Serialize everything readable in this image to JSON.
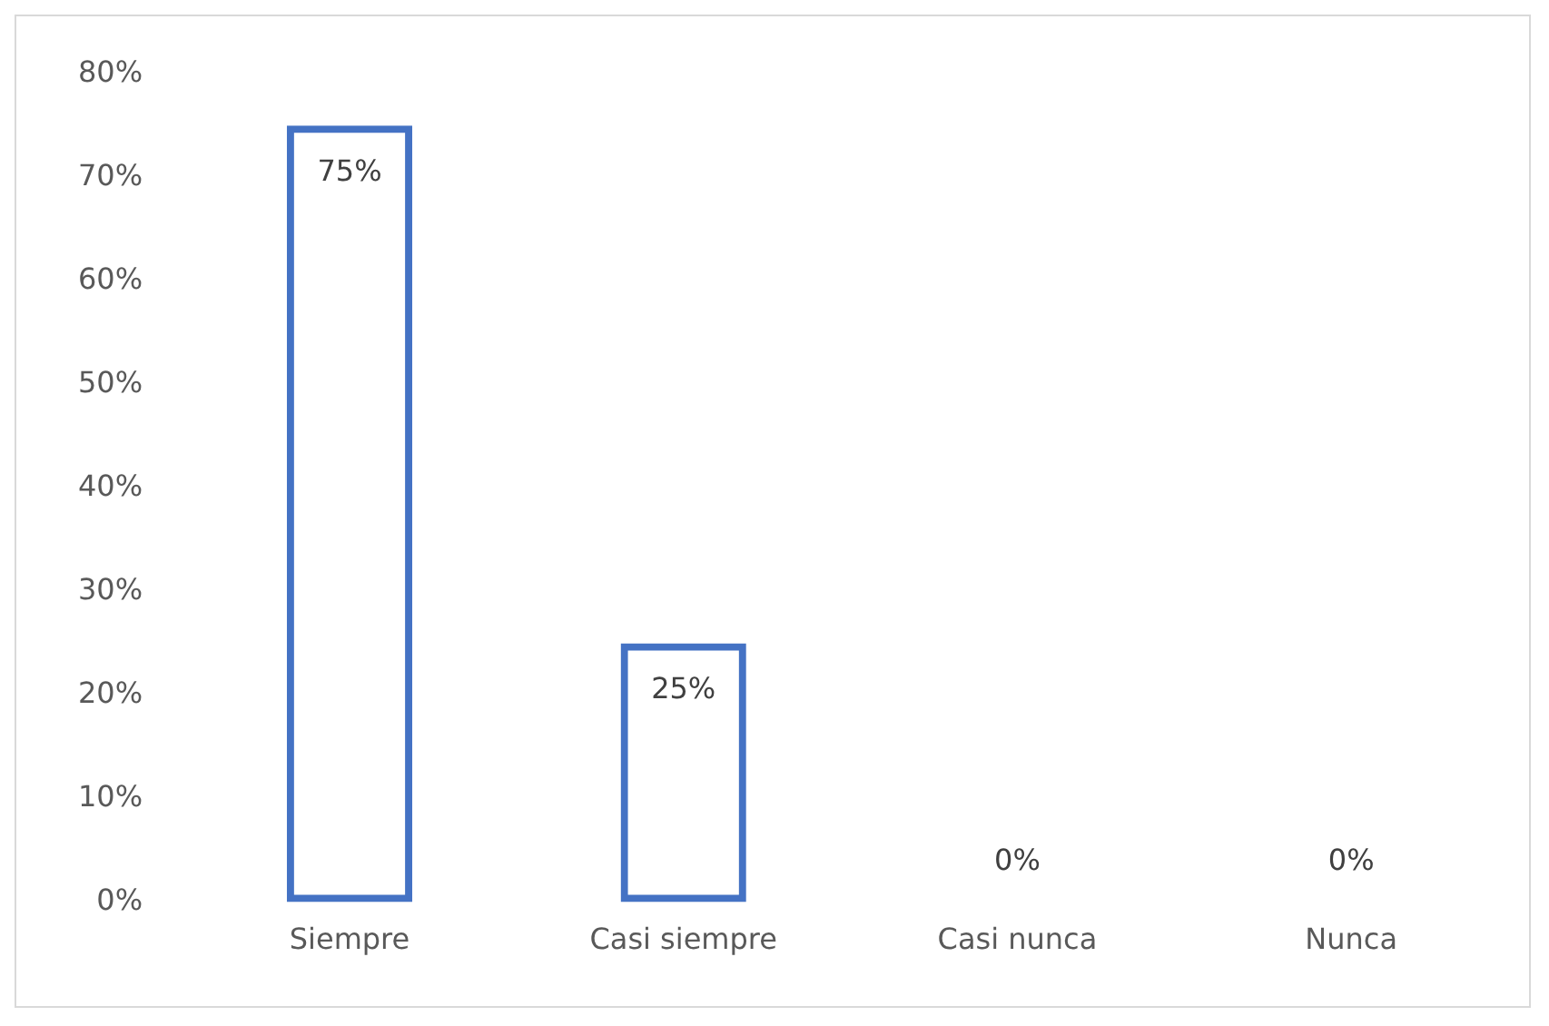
{
  "chart_data": {
    "type": "bar",
    "categories": [
      "Siempre",
      "Casi siempre",
      "Casi nunca",
      "Nunca"
    ],
    "values": [
      75,
      25,
      0,
      0
    ],
    "color": "#4472c4",
    "value_labels": [
      "75%",
      "25%",
      "0%",
      "0%"
    ],
    "ylim": [
      0,
      80
    ],
    "yticks": [
      {
        "value": 0,
        "label": "0%"
      },
      {
        "value": 10,
        "label": "10%"
      },
      {
        "value": 20,
        "label": "20%"
      },
      {
        "value": 30,
        "label": "30%"
      },
      {
        "value": 40,
        "label": "40%"
      },
      {
        "value": 50,
        "label": "50%"
      },
      {
        "value": 60,
        "label": "60%"
      },
      {
        "value": 70,
        "label": "70%"
      },
      {
        "value": 80,
        "label": "80%"
      }
    ],
    "grid": false,
    "legend": false
  }
}
